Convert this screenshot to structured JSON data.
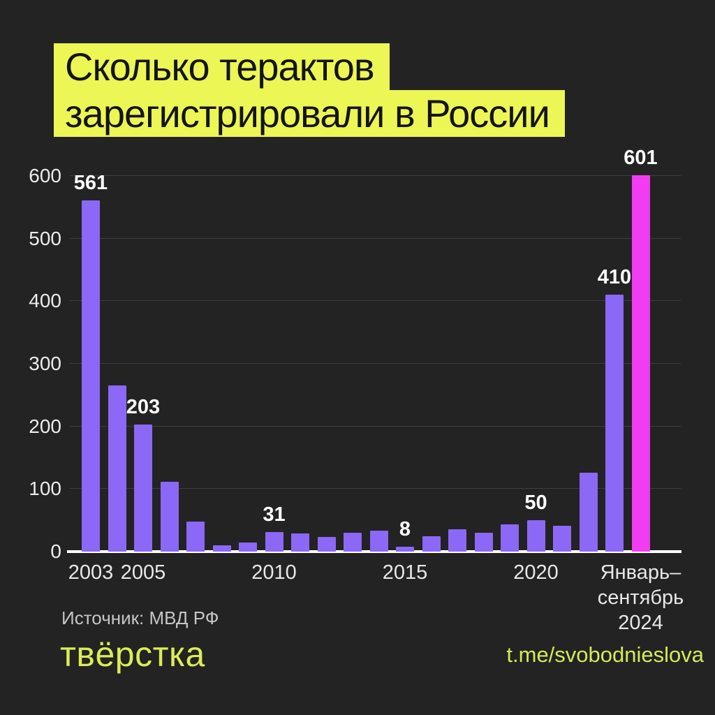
{
  "title": {
    "line1": "Сколько терактов",
    "line2": "зарегистрировали в России"
  },
  "chart_data": {
    "type": "bar",
    "title": "Сколько терактов зарегистрировали в России",
    "xlabel": "",
    "ylabel": "",
    "ylim": [
      0,
      600
    ],
    "yticks": [
      0,
      100,
      200,
      300,
      400,
      500,
      600
    ],
    "grid": true,
    "legend": "none",
    "bar_color": "#8B68F5",
    "highlight_color": "#F23CF3",
    "points": [
      {
        "x": "2003",
        "value": 561,
        "show_label": true,
        "show_tick": true
      },
      {
        "x": "2004",
        "value": 265
      },
      {
        "x": "2005",
        "value": 203,
        "show_label": true,
        "show_tick": true
      },
      {
        "x": "2006",
        "value": 112
      },
      {
        "x": "2007",
        "value": 48
      },
      {
        "x": "2008",
        "value": 10
      },
      {
        "x": "2009",
        "value": 15
      },
      {
        "x": "2010",
        "value": 31,
        "show_label": true,
        "show_tick": true
      },
      {
        "x": "2011",
        "value": 29
      },
      {
        "x": "2012",
        "value": 23
      },
      {
        "x": "2013",
        "value": 30
      },
      {
        "x": "2014",
        "value": 34
      },
      {
        "x": "2015",
        "value": 8,
        "show_label": true,
        "show_tick": true
      },
      {
        "x": "2016",
        "value": 25
      },
      {
        "x": "2017",
        "value": 36
      },
      {
        "x": "2018",
        "value": 30
      },
      {
        "x": "2019",
        "value": 44
      },
      {
        "x": "2020",
        "value": 50,
        "show_label": true,
        "show_tick": true
      },
      {
        "x": "2021",
        "value": 41
      },
      {
        "x": "2022",
        "value": 126
      },
      {
        "x": "2023",
        "value": 410,
        "show_label": true
      },
      {
        "x": "Январь–сентябрь 2024",
        "value": 601,
        "show_label": true,
        "show_tick": true,
        "tick_lines": [
          "Январь–",
          "сентябрь",
          "2024"
        ],
        "highlight": true
      }
    ]
  },
  "footer": {
    "source": "Источник: МВД РФ",
    "logo": "твёрстка",
    "link": "t.me/svobodnieslova"
  },
  "colors": {
    "background": "#232323",
    "title_highlight": "#ECF655",
    "bar_purple": "#8B68F5",
    "bar_magenta": "#F23CF3",
    "axis_text": "#ECECEC",
    "gridline": "#3f3f3f",
    "baseline": "#ffffff",
    "source_text": "#C6C6C6",
    "brand_yellow": "#DCEC56"
  }
}
